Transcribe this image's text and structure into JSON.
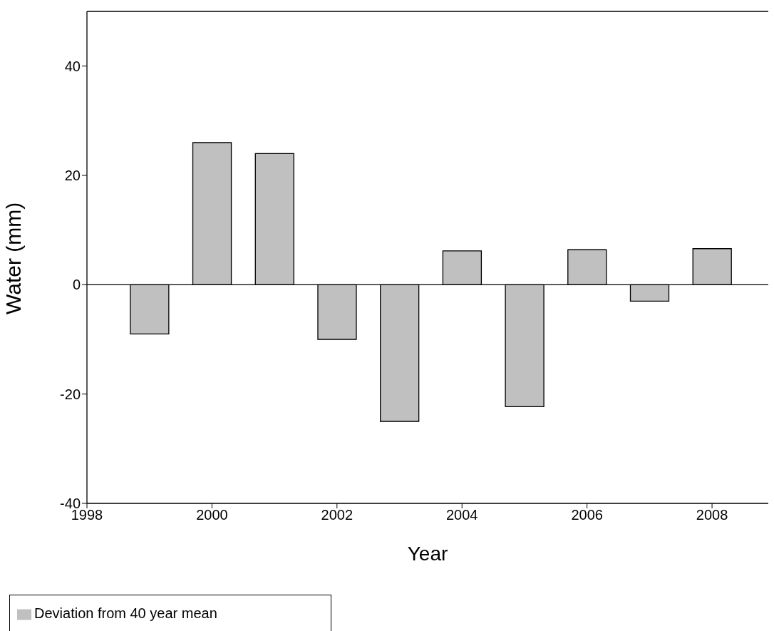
{
  "chart_data": {
    "type": "bar",
    "xlabel": "Year",
    "ylabel": "Water (mm)",
    "x": [
      1999,
      2000,
      2001,
      2002,
      2003,
      2004,
      2005,
      2006,
      2007,
      2008
    ],
    "series": [
      {
        "name": "Deviation from 40 year mean",
        "color": "#c0c0c0",
        "values": [
          -9,
          26,
          24,
          -10,
          -25,
          6.2,
          -22.3,
          6.4,
          -3,
          6.6
        ]
      }
    ],
    "xlim": [
      1998,
      2008.9
    ],
    "xticks": [
      1998,
      2000,
      2002,
      2004,
      2006,
      2008
    ],
    "ylim": [
      -40,
      50
    ],
    "yticks": [
      -40,
      -20,
      0,
      20,
      40
    ],
    "ref_lines": [
      {
        "axis": "y",
        "value": 0,
        "color": "#000000"
      }
    ],
    "grid": false,
    "legend": "bottom left"
  }
}
